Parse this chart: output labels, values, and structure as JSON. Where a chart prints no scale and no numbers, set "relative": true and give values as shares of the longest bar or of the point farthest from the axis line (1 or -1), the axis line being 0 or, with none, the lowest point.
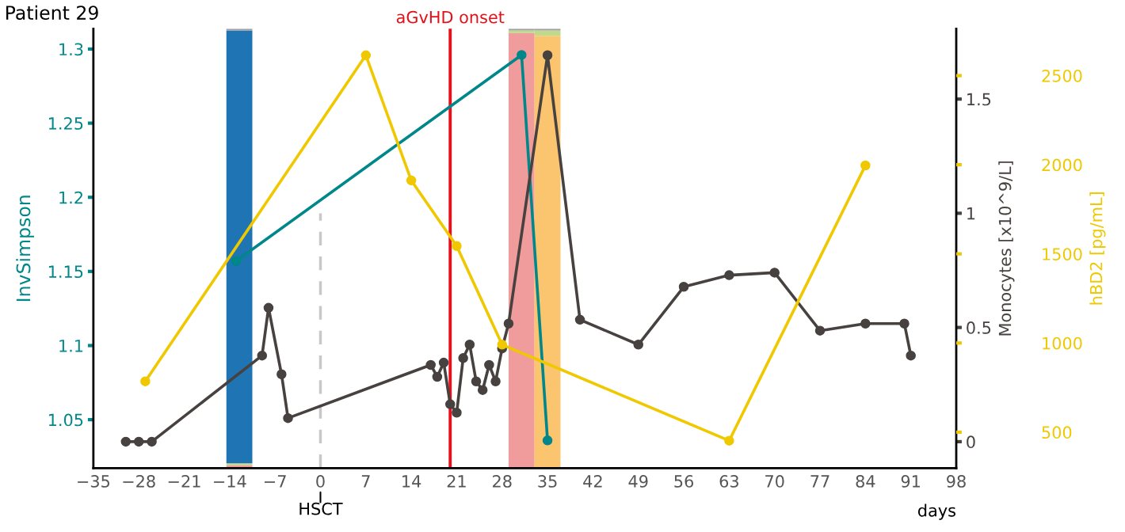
{
  "chart_data": [
    {
      "type": "bar",
      "stacked": true,
      "relative": true,
      "x": [
        -12.5,
        31,
        35
      ],
      "xlim": [
        -35,
        98
      ],
      "tick_labels": false,
      "series": [
        {
          "color": "#f19c9c",
          "values": [
            0.007,
            0.99,
            0
          ]
        },
        {
          "color": "#fbc46e",
          "values": [
            0,
            0,
            0.984
          ]
        },
        {
          "color": "#c1d98a",
          "values": [
            0.004,
            0.006,
            0.012
          ]
        },
        {
          "color": "#1f74b4",
          "values": [
            0.985,
            0,
            0
          ]
        },
        {
          "color": "#a0a0a0",
          "values": [
            0.004,
            0.004,
            0.004
          ]
        }
      ]
    },
    {
      "type": "line",
      "title": "Patient 29",
      "xlabel": "days",
      "ylabel": "InvSimpson",
      "y2label": "Monocytes [x10^9/L]",
      "y3label": "hBD2 [pg/mL]",
      "marker": "circle",
      "line_style": "solid",
      "grid": false,
      "legend": false,
      "xlim": [
        -35,
        98
      ],
      "xticks": [
        {
          "value": -35,
          "label": "−35"
        },
        {
          "value": -28,
          "label": "−28"
        },
        {
          "value": -21,
          "label": "−21"
        },
        {
          "value": -14,
          "label": "−14"
        },
        {
          "value": -7,
          "label": "−7"
        },
        0,
        7,
        14,
        21,
        28,
        35,
        42,
        49,
        56,
        63,
        70,
        77,
        84,
        91,
        98
      ],
      "ylim": [
        1.0173,
        1.3137
      ],
      "yticks": [
        1.05,
        1.1,
        1.15,
        1.2,
        1.25,
        1.3
      ],
      "y2lim": [
        -0.116,
        1.808
      ],
      "y2ticks": [
        0,
        0.5,
        1,
        1.5
      ],
      "y3lim": [
        298,
        2763
      ],
      "y3ticks": [
        500,
        1000,
        1500,
        2000,
        2500
      ],
      "ref_lines": [
        {
          "axis": "x",
          "value": 0,
          "label": "HSCT",
          "color": "#c8c8c8",
          "line_style": "dashed"
        },
        {
          "axis": "x",
          "value": 20,
          "label": "aGvHD onset",
          "color": "#e3111b",
          "line_style": "solid"
        }
      ],
      "series": [
        {
          "axis": "y3",
          "color": "#f0c800",
          "x": [
            -27,
            7,
            14,
            21,
            28,
            63,
            84
          ],
          "values": [
            785,
            2614,
            1912,
            1544,
            991,
            452,
            1996
          ]
        },
        {
          "axis": "y2",
          "color": "#474140",
          "x": [
            -30,
            -28,
            -26,
            -9,
            -8,
            -6,
            -5,
            17,
            18,
            19,
            20,
            21,
            22,
            23,
            24,
            25,
            26,
            27,
            28,
            29,
            35,
            40,
            49,
            56,
            63,
            70,
            77,
            84,
            90,
            91
          ],
          "values": [
            0,
            0,
            0,
            0.377,
            0.586,
            0.295,
            0.103,
            0.336,
            0.284,
            0.346,
            0.164,
            0.127,
            0.366,
            0.425,
            0.264,
            0.226,
            0.336,
            0.264,
            0.408,
            0.517,
            1.692,
            0.534,
            0.425,
            0.678,
            0.729,
            0.74,
            0.486,
            0.517,
            0.517,
            0.377
          ]
        },
        {
          "axis": "y",
          "color": "#00878a",
          "x": [
            -13,
            31,
            35
          ],
          "values": [
            1.157,
            1.296,
            1.036
          ]
        }
      ]
    }
  ]
}
